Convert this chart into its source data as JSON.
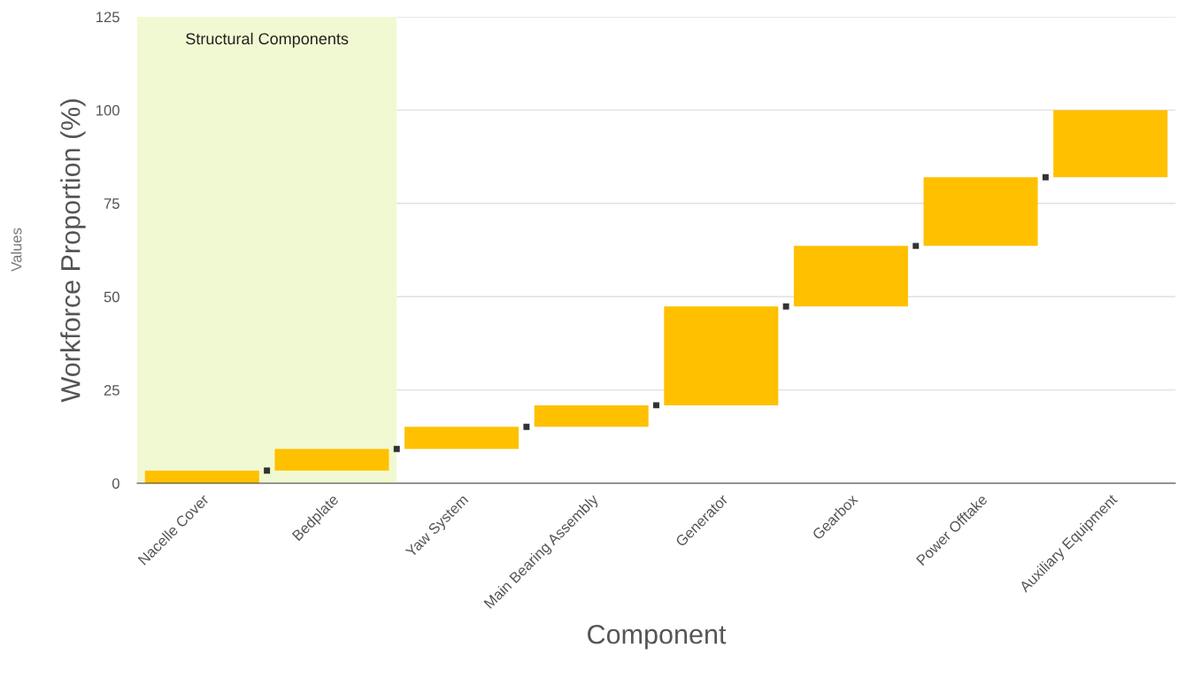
{
  "chart_data": {
    "type": "bar",
    "xlabel": "Component",
    "ylabel": "Workforce Proportion (%)",
    "annotations": [
      "Values"
    ],
    "categories": [
      "Nacelle Cover",
      "Bedplate",
      "Yaw System",
      "Main Bearing Assembly",
      "Generator",
      "Gearbox",
      "Power Offtake",
      "Auxiliary Equipment"
    ],
    "values": [
      3.4,
      5.8,
      5.9,
      5.8,
      26.5,
      16.2,
      18.4,
      18.0
    ],
    "base": [
      0,
      3.4,
      9.2,
      15.1,
      20.9,
      47.4,
      63.6,
      82.0
    ],
    "color": "#ffc000",
    "ylim": [
      0,
      125
    ],
    "yticks": [
      0,
      25,
      50,
      75,
      100,
      125
    ],
    "grid": "y",
    "legend": false,
    "bands": [
      {
        "axis": "x",
        "from": "Nacelle Cover",
        "to": "Bedplate",
        "label": "Structural Components",
        "color": "#f1f9d2"
      }
    ]
  }
}
